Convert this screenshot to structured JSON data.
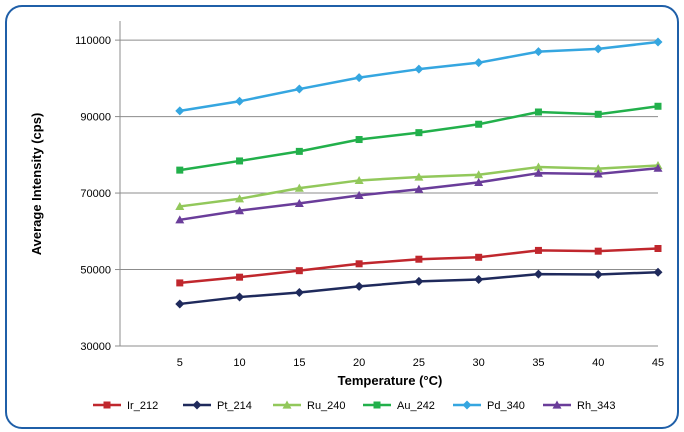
{
  "chart_data": {
    "type": "line",
    "title": "",
    "xlabel": "Temperature (°C)",
    "ylabel": "Average Intensity (cps)",
    "x": [
      5,
      10,
      15,
      20,
      25,
      30,
      35,
      40,
      45
    ],
    "xticks": [
      "5",
      "10",
      "15",
      "20",
      "25",
      "30",
      "35",
      "40",
      "45"
    ],
    "xlim": [
      0,
      45
    ],
    "ylim": [
      30000,
      115000
    ],
    "yticks": [
      30000,
      50000,
      70000,
      90000,
      110000
    ],
    "ytick_labels": [
      "30000",
      "50000",
      "70000",
      "90000",
      "110000"
    ],
    "grid": "horizontal",
    "legend_position": "bottom",
    "series": [
      {
        "name": "Ir_212",
        "color": "#c0272d",
        "marker": "square",
        "values": [
          46500,
          48000,
          49700,
          51500,
          52700,
          53200,
          55000,
          54800,
          55500
        ]
      },
      {
        "name": "Pt_214",
        "color": "#1f2a5c",
        "marker": "diamond",
        "values": [
          41000,
          42800,
          44000,
          45600,
          46900,
          47400,
          48800,
          48700,
          49300
        ]
      },
      {
        "name": "Ru_240",
        "color": "#92c85b",
        "marker": "triangle",
        "values": [
          66500,
          68500,
          71300,
          73300,
          74200,
          74800,
          76800,
          76400,
          77200
        ]
      },
      {
        "name": "Au_242",
        "color": "#22b04b",
        "marker": "square",
        "values": [
          76000,
          78400,
          80900,
          84000,
          85800,
          88000,
          91200,
          90600,
          92700
        ]
      },
      {
        "name": "Pd_340",
        "color": "#35a6e0",
        "marker": "diamond",
        "values": [
          91500,
          94000,
          97200,
          100200,
          102400,
          104100,
          107000,
          107700,
          109500
        ]
      },
      {
        "name": "Rh_343",
        "color": "#6a3d9a",
        "marker": "triangle",
        "values": [
          63000,
          65400,
          67300,
          69400,
          71000,
          72800,
          75200,
          75000,
          76500
        ]
      }
    ]
  }
}
